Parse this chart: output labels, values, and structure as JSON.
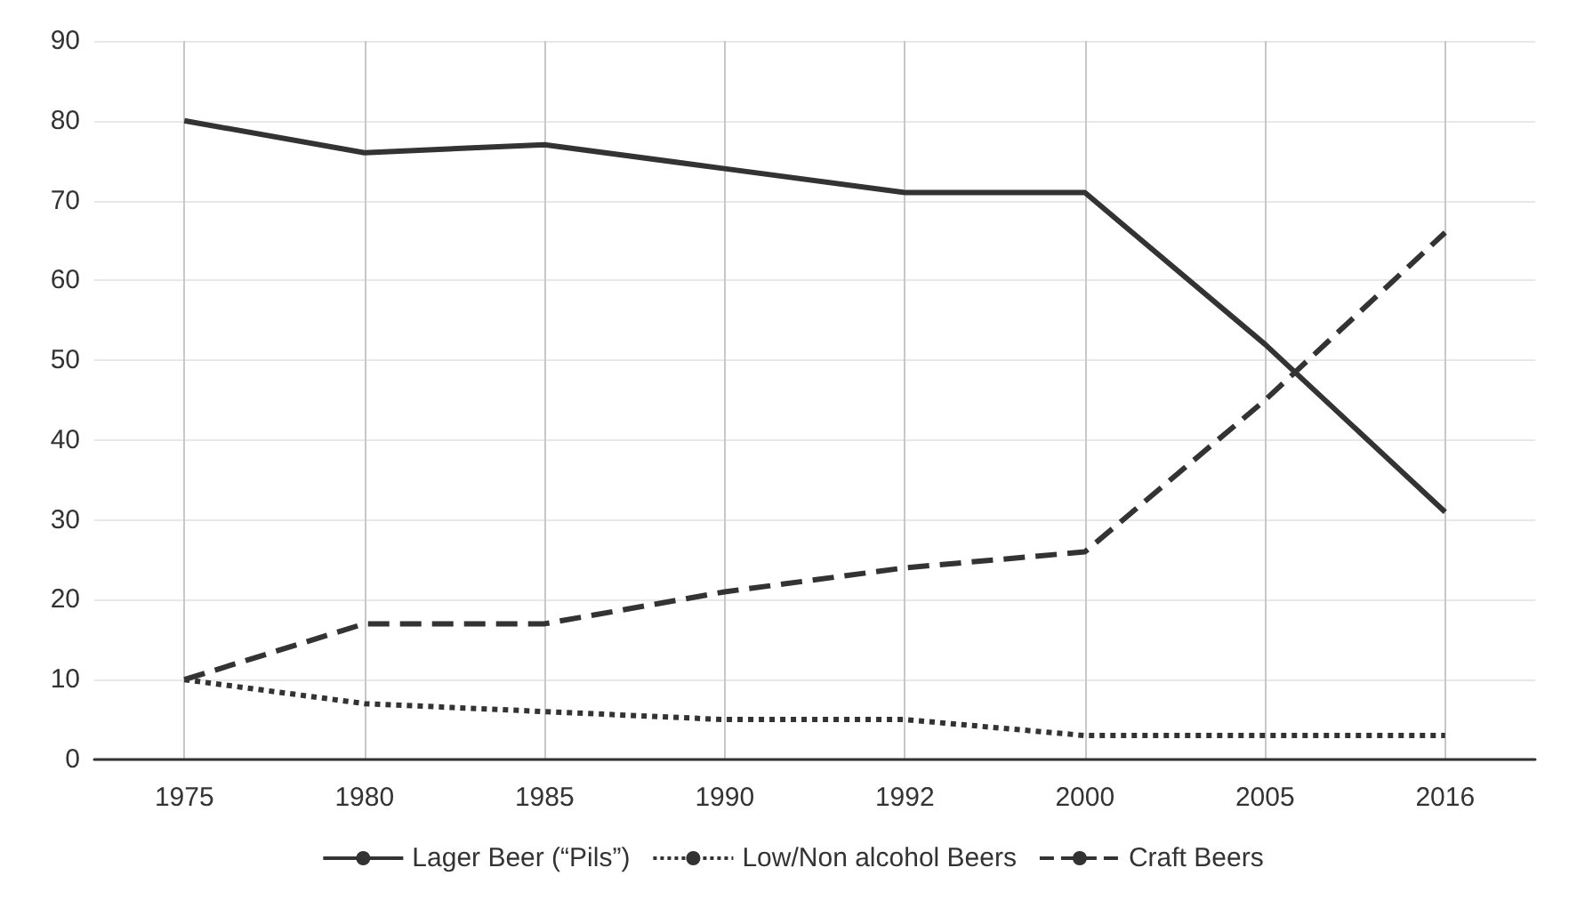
{
  "chart_data": {
    "type": "line",
    "categories": [
      "1975",
      "1980",
      "1985",
      "1990",
      "1992",
      "2000",
      "2005",
      "2016"
    ],
    "series": [
      {
        "name": "Lager Beer (“Pils”)",
        "color": "#333333",
        "line_style": "solid",
        "values": [
          80,
          76,
          77,
          74,
          71,
          71,
          52,
          31
        ]
      },
      {
        "name": "Low/Non alcohol Beers",
        "color": "#333333",
        "line_style": "dotted",
        "values": [
          10,
          7,
          6,
          5,
          5,
          3,
          3,
          3
        ]
      },
      {
        "name": "Craft Beers",
        "color": "#333333",
        "line_style": "dashed",
        "values": [
          10,
          17,
          17,
          21,
          24,
          26,
          45,
          66
        ]
      }
    ],
    "ylim": [
      0,
      90
    ],
    "yticks": [
      0,
      10,
      20,
      30,
      40,
      50,
      60,
      70,
      80,
      90
    ],
    "grid": true,
    "legend": "bottom",
    "marker": "none"
  }
}
